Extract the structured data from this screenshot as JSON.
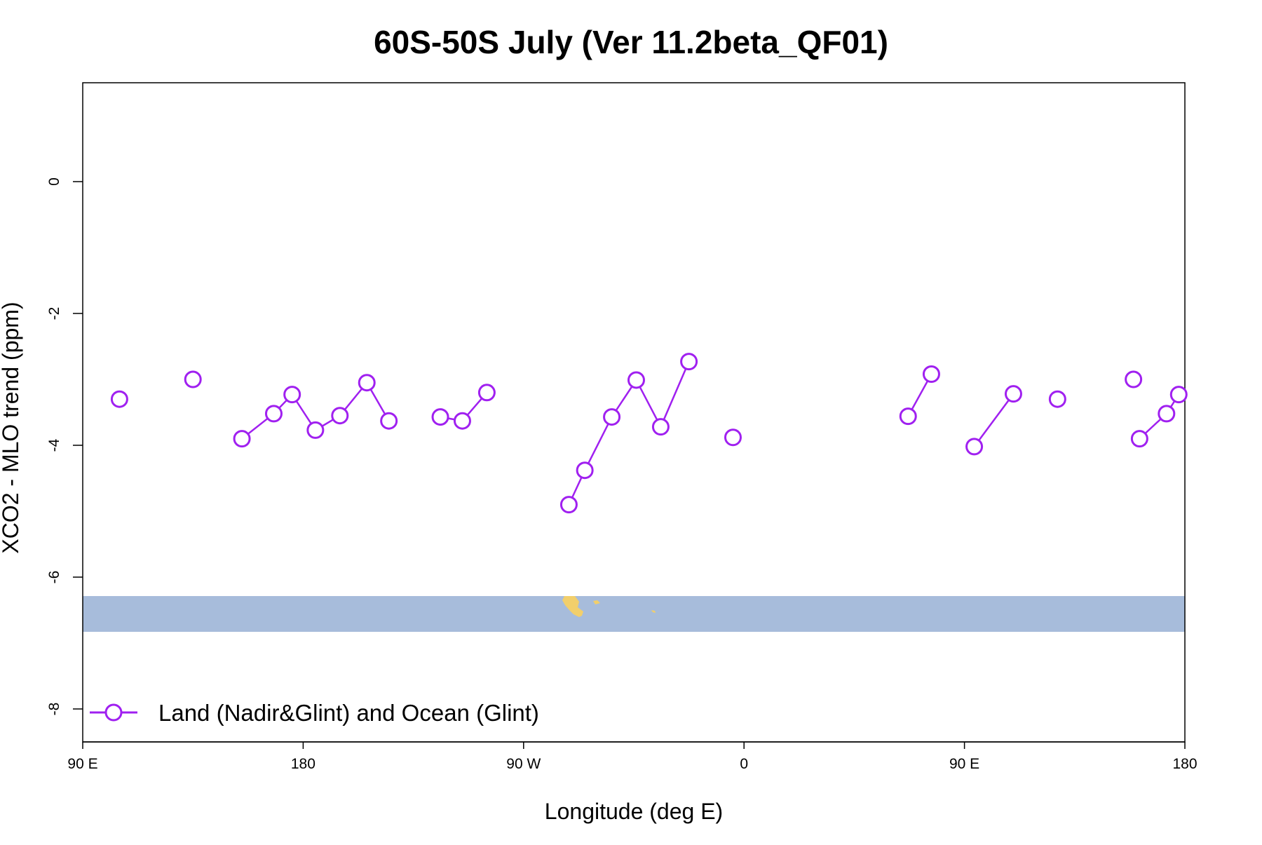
{
  "chart_data": {
    "type": "line",
    "title": "60S-50S July (Ver 11.2beta_QF01)",
    "xlabel": "Longitude (deg E)",
    "ylabel": "XCO2 - MLO trend (ppm)",
    "xlim": [
      90,
      540
    ],
    "ylim": [
      -8.5,
      1.5
    ],
    "x_ticks": [
      {
        "value": 90,
        "label": "90 E"
      },
      {
        "value": 180,
        "label": "180"
      },
      {
        "value": 270,
        "label": "90 W"
      },
      {
        "value": 360,
        "label": "0"
      },
      {
        "value": 450,
        "label": "90 E"
      },
      {
        "value": 540,
        "label": "180"
      }
    ],
    "y_ticks": [
      {
        "value": 0,
        "label": "0"
      },
      {
        "value": -2,
        "label": "-2"
      },
      {
        "value": -4,
        "label": "-4"
      },
      {
        "value": -6,
        "label": "-6"
      },
      {
        "value": -8,
        "label": "-8"
      }
    ],
    "grid": false,
    "legend": {
      "position": "bottom-left",
      "marker": "open-circle-line"
    },
    "colors": {
      "series": "#a020f0",
      "ocean_band": "#a7bcdb",
      "land": "#f2cf6b"
    },
    "series": [
      {
        "name": "Land (Nadir&Glint) and Ocean (Glint)",
        "segments": [
          [
            {
              "x": 105,
              "y": -3.3
            }
          ],
          [
            {
              "x": 135,
              "y": -3.0
            }
          ],
          [
            {
              "x": 155,
              "y": -3.9
            },
            {
              "x": 168,
              "y": -3.52
            },
            {
              "x": 175.5,
              "y": -3.23
            },
            {
              "x": 185,
              "y": -3.77
            },
            {
              "x": 195,
              "y": -3.55
            },
            {
              "x": 206,
              "y": -3.05
            },
            {
              "x": 215,
              "y": -3.63
            }
          ],
          [
            {
              "x": 236,
              "y": -3.57
            },
            {
              "x": 245,
              "y": -3.63
            },
            {
              "x": 255,
              "y": -3.2
            }
          ],
          [
            {
              "x": 288.5,
              "y": -4.9
            },
            {
              "x": 295,
              "y": -4.38
            },
            {
              "x": 306,
              "y": -3.57
            },
            {
              "x": 316,
              "y": -3.01
            },
            {
              "x": 326,
              "y": -3.72
            },
            {
              "x": 337.5,
              "y": -2.73
            }
          ],
          [
            {
              "x": 355.5,
              "y": -3.88
            }
          ],
          [
            {
              "x": 427,
              "y": -3.56
            },
            {
              "x": 436.5,
              "y": -2.92
            }
          ],
          [
            {
              "x": 454,
              "y": -4.02
            },
            {
              "x": 470,
              "y": -3.22
            }
          ],
          [
            {
              "x": 488,
              "y": -3.3
            }
          ],
          [
            {
              "x": 519,
              "y": -3.0
            }
          ],
          [
            {
              "x": 521.5,
              "y": -3.9
            },
            {
              "x": 532.5,
              "y": -3.52
            },
            {
              "x": 537.5,
              "y": -3.23
            }
          ]
        ]
      }
    ]
  }
}
